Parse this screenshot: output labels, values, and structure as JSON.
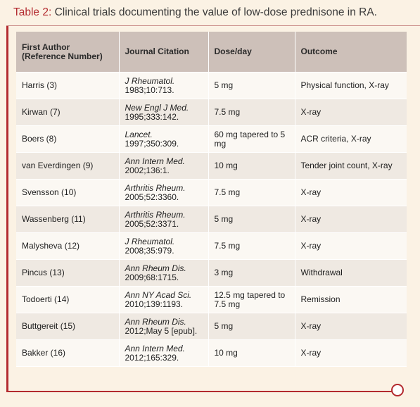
{
  "caption": {
    "label": "Table 2:",
    "text": " Clinical trials documenting the value of low-dose prednisone in RA."
  },
  "table": {
    "headers": {
      "author_line1": "First Author",
      "author_line2": "(Reference Number)",
      "citation": "Journal Citation",
      "dose": "Dose/day",
      "outcome": "Outcome"
    },
    "rows": [
      {
        "author": "Harris (3)",
        "journal": "J Rheumatol.",
        "ref": "1983;10:713.",
        "dose": "5 mg",
        "outcome": "Physical function, X-ray"
      },
      {
        "author": "Kirwan (7)",
        "journal": "New Engl J Med.",
        "ref": "1995;333:142.",
        "dose": "7.5 mg",
        "outcome": "X-ray"
      },
      {
        "author": "Boers (8)",
        "journal": "Lancet.",
        "ref": "1997;350:309.",
        "dose": "60 mg tapered to 5 mg",
        "outcome": "ACR criteria, X-ray"
      },
      {
        "author": "van Everdingen (9)",
        "journal": "Ann Intern Med.",
        "ref": "2002;136:1.",
        "dose": "10 mg",
        "outcome": "Tender joint count, X-ray"
      },
      {
        "author": "Svensson (10)",
        "journal": "Arthritis Rheum.",
        "ref": "2005;52:3360.",
        "dose": "7.5 mg",
        "outcome": "X-ray"
      },
      {
        "author": "Wassenberg (11)",
        "journal": "Arthritis Rheum.",
        "ref": "2005;52:3371.",
        "dose": "5 mg",
        "outcome": "X-ray"
      },
      {
        "author": "Malysheva (12)",
        "journal": "J Rheumatol.",
        "ref": "2008;35:979.",
        "dose": "7.5 mg",
        "outcome": "X-ray"
      },
      {
        "author": "Pincus (13)",
        "journal": "Ann Rheum Dis.",
        "ref": "2009;68:1715.",
        "dose": "3 mg",
        "outcome": "Withdrawal"
      },
      {
        "author": "Todoerti (14)",
        "journal": "Ann NY Acad Sci.",
        "ref": "2010;139:1193.",
        "dose": "12.5 mg tapered to 7.5 mg",
        "outcome": "Remission"
      },
      {
        "author": "Buttgereit (15)",
        "journal": "Ann Rheum Dis.",
        "ref": "2012;May 5 [epub].",
        "dose": "5 mg",
        "outcome": "X-ray"
      },
      {
        "author": "Bakker (16)",
        "journal": "Ann Intern Med.",
        "ref": "2012;165:329.",
        "dose": "10 mg",
        "outcome": "X-ray"
      }
    ]
  },
  "colors": {
    "accent": "#b32a2f",
    "header_bg": "#cdc0b9",
    "page_bg": "#fbf2e4"
  }
}
